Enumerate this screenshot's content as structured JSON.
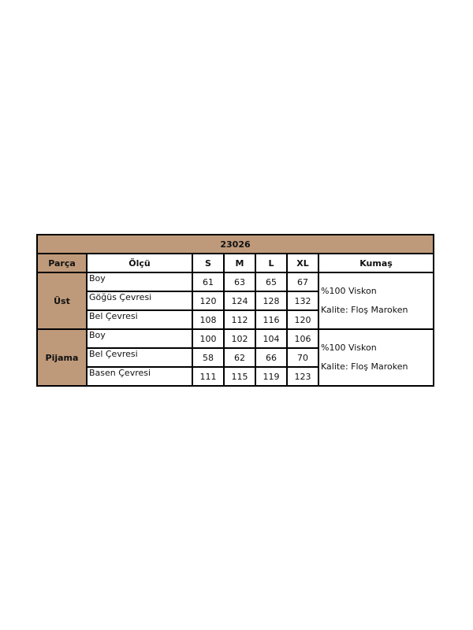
{
  "title": "23026",
  "headers": [
    "Parça",
    "Ölçü",
    "S",
    "M",
    "L",
    "XL",
    "Kumaş"
  ],
  "groups": [
    {
      "name": "Üst",
      "fabric": [
        "%100 Viskon",
        "Kalite: Floş Maroken"
      ],
      "rows": [
        {
          "label": "Boy",
          "values": [
            "61",
            "63",
            "65",
            "67"
          ]
        },
        {
          "label": "Göğüs Çevresi",
          "values": [
            "120",
            "124",
            "128",
            "132"
          ]
        },
        {
          "label": "Bel Çevresi",
          "values": [
            "108",
            "112",
            "116",
            "120"
          ]
        }
      ]
    },
    {
      "name": "Pijama",
      "fabric": [
        "%100 Viskon",
        "Kalite: Floş Maroken"
      ],
      "rows": [
        {
          "label": "Boy",
          "values": [
            "100",
            "102",
            "104",
            "106"
          ]
        },
        {
          "label": "Bel Çevresi",
          "values": [
            "58",
            "62",
            "66",
            "70"
          ]
        },
        {
          "label": "Basen Çevresi",
          "values": [
            "111",
            "115",
            "119",
            "123"
          ]
        }
      ]
    }
  ],
  "colors": {
    "header_bg": "#bf9a7a"
  }
}
